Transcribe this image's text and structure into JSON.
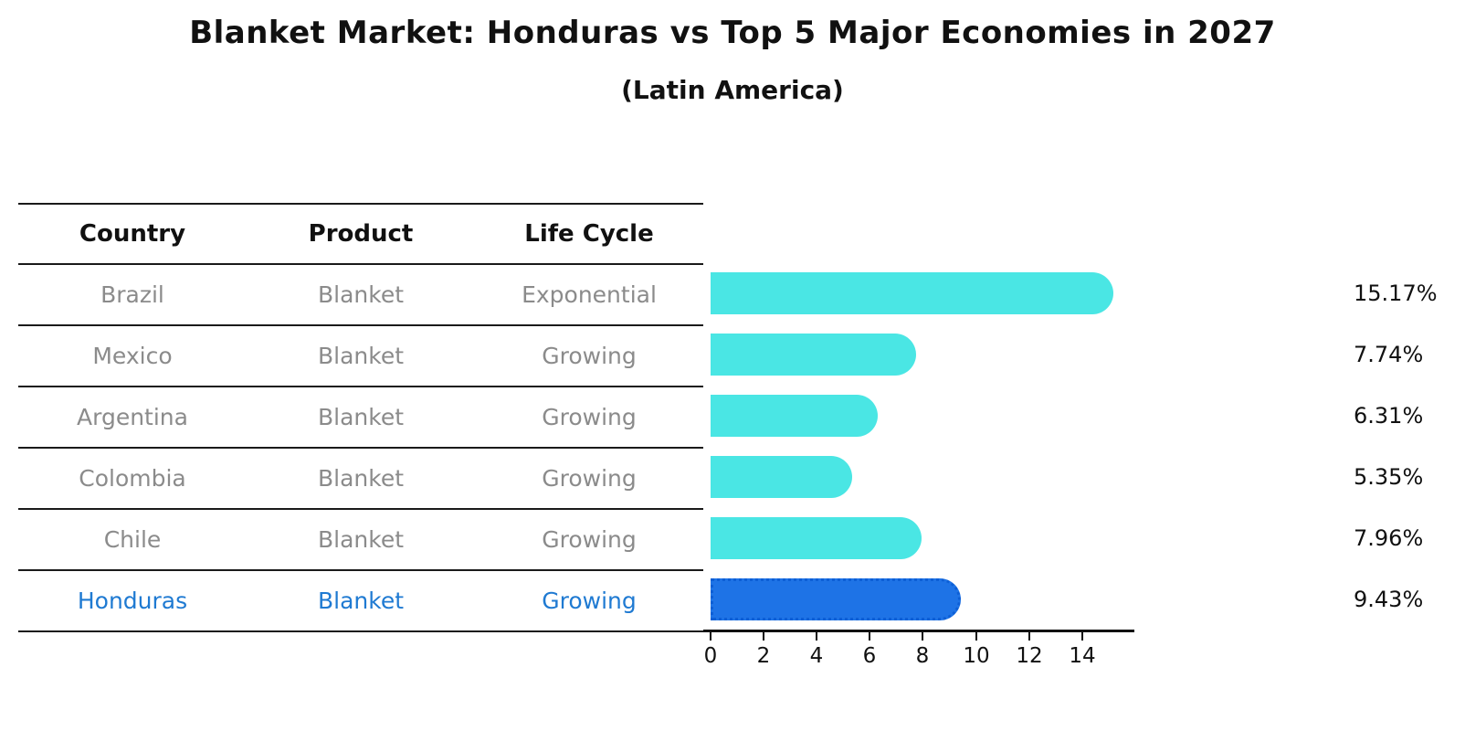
{
  "title": "Blanket Market: Honduras vs Top 5 Major Economies in 2027",
  "subtitle": "(Latin America)",
  "table": {
    "headers": [
      "Country",
      "Product",
      "Life Cycle"
    ],
    "rows": [
      {
        "country": "Brazil",
        "product": "Blanket",
        "life_cycle": "Exponential",
        "highlight": false
      },
      {
        "country": "Mexico",
        "product": "Blanket",
        "life_cycle": "Growing",
        "highlight": false
      },
      {
        "country": "Argentina",
        "product": "Blanket",
        "life_cycle": "Growing",
        "highlight": false
      },
      {
        "country": "Colombia",
        "product": "Blanket",
        "life_cycle": "Growing",
        "highlight": false
      },
      {
        "country": "Chile",
        "product": "Blanket",
        "life_cycle": "Growing",
        "highlight": false
      },
      {
        "country": "Honduras",
        "product": "Blanket",
        "life_cycle": "Growing",
        "highlight": true
      }
    ]
  },
  "chart_data": {
    "type": "bar",
    "orientation": "horizontal",
    "title": "Blanket Market: Honduras vs Top 5 Major Economies in 2027",
    "subtitle": "(Latin America)",
    "categories": [
      "Brazil",
      "Mexico",
      "Argentina",
      "Colombia",
      "Chile",
      "Honduras"
    ],
    "values": [
      15.17,
      7.74,
      6.31,
      5.35,
      7.96,
      9.43
    ],
    "value_labels": [
      "15.17%",
      "7.74%",
      "6.31%",
      "5.35%",
      "7.96%",
      "9.43%"
    ],
    "xlabel": "",
    "ylabel": "",
    "xlim": [
      0,
      15.9
    ],
    "x_ticks": [
      0,
      2,
      4,
      6,
      8,
      10,
      12,
      14
    ],
    "grid": false,
    "legend": "none",
    "bar_color": "#4AE6E4",
    "highlight_color": "#1E73E6",
    "highlight_edge_color": "#0d5fd6",
    "highlight_index": 5,
    "highlight_text_color": "#1f7ad2",
    "table_text_color": "#8b8b8b",
    "axis_color": "#111111"
  }
}
